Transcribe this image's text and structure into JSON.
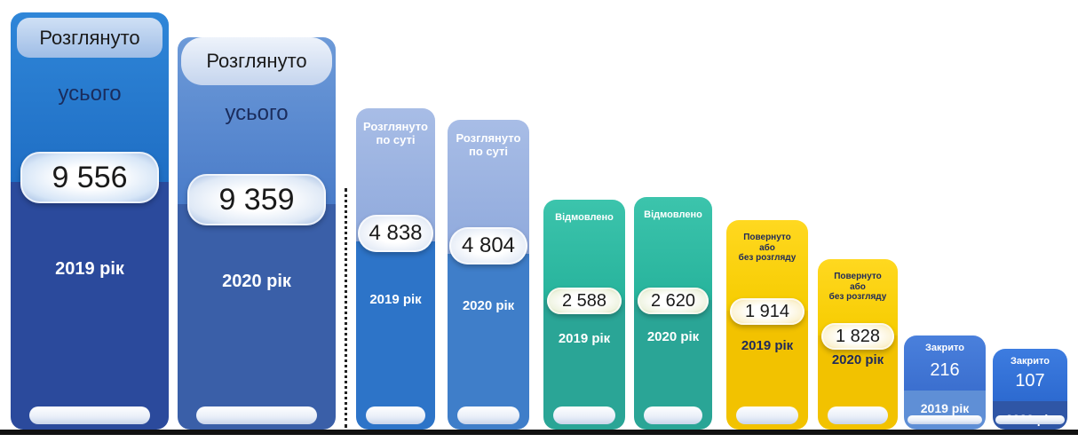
{
  "chart_data": {
    "type": "bar",
    "categories": [
      "Розглянуто усього",
      "Розглянуто по суті",
      "Відмовлено",
      "Повернуто або без розгляду",
      "Закрито"
    ],
    "series": [
      {
        "name": "2019 рік",
        "values": [
          9556,
          4838,
          2588,
          1914,
          216
        ]
      },
      {
        "name": "2020 рік",
        "values": [
          9359,
          4804,
          2620,
          1828,
          107
        ]
      }
    ],
    "bars": [
      {
        "header": "Розглянуто",
        "subheader": "усього",
        "value": 9556,
        "value_label": "9 556",
        "year": "2019 рік",
        "color": "#1f6ec4",
        "color_light": "#2f86d8",
        "color_dark": "#2b4a9c",
        "pill_color": "#d7e6f7"
      },
      {
        "header": "Розглянуто",
        "subheader": "усього",
        "value": 9359,
        "value_label": "9 359",
        "year": "2020 рік",
        "color": "#4a7cc9",
        "color_light": "#6d9ad8",
        "color_dark": "#3a5fa8",
        "pill_color": "#dfe9f6"
      },
      {
        "header": "Розглянуто\nпо суті",
        "subheader": "",
        "value": 4838,
        "value_label": "4 838",
        "year": "2019 рік",
        "color": "#8fa9dc",
        "color_light": "#a8bde6",
        "color_dark": "#2d74c8",
        "pill_color": "#e4ebf6"
      },
      {
        "header": "Розглянуто\nпо суті",
        "subheader": "",
        "value": 4804,
        "value_label": "4 804",
        "year": "2020 рік",
        "color": "#8fa9dc",
        "color_light": "#a8bde6",
        "color_dark": "#3f7ec9",
        "pill_color": "#e4ebf6"
      },
      {
        "header": "Відмовлено",
        "subheader": "",
        "value": 2588,
        "value_label": "2 588",
        "year": "2019 рік",
        "color": "#27b39c",
        "color_light": "#3cc4ac",
        "color_dark": "#2aa596",
        "pill_color": "#eef3e0"
      },
      {
        "header": "Відмовлено",
        "subheader": "",
        "value": 2620,
        "value_label": "2 620",
        "year": "2020 рік",
        "color": "#27b39c",
        "color_light": "#3cc4ac",
        "color_dark": "#2aa596",
        "pill_color": "#eef3e0"
      },
      {
        "header": "Повернуто\nабо\nбез розгляду",
        "subheader": "",
        "value": 1914,
        "value_label": "1 914",
        "year": "2019 рік",
        "color": "#f6cc00",
        "color_light": "#ffd820",
        "color_dark": "#f2c200",
        "pill_color": "#fbf2d2"
      },
      {
        "header": "Повернуто\nабо\nбез розгляду",
        "subheader": "",
        "value": 1828,
        "value_label": "1 828",
        "year": "2020 рік",
        "color": "#f6cc00",
        "color_light": "#ffd820",
        "color_dark": "#f2c200",
        "pill_color": "#fbf2d2"
      },
      {
        "header": "Закрито",
        "subheader": "",
        "value": 216,
        "value_label": "216",
        "year": "2019 рік",
        "color": "#3b6fcf",
        "color_light": "#4a80dc",
        "color_dark": "#5f8fd6",
        "pill_color": "#3b6fcf"
      },
      {
        "header": "Закрито",
        "subheader": "",
        "value": 107,
        "value_label": "107",
        "year": "2020 рік",
        "color": "#2d6ad0",
        "color_light": "#3d7ce0",
        "color_dark": "#2f56a6",
        "pill_color": "#2d6ad0"
      }
    ]
  }
}
